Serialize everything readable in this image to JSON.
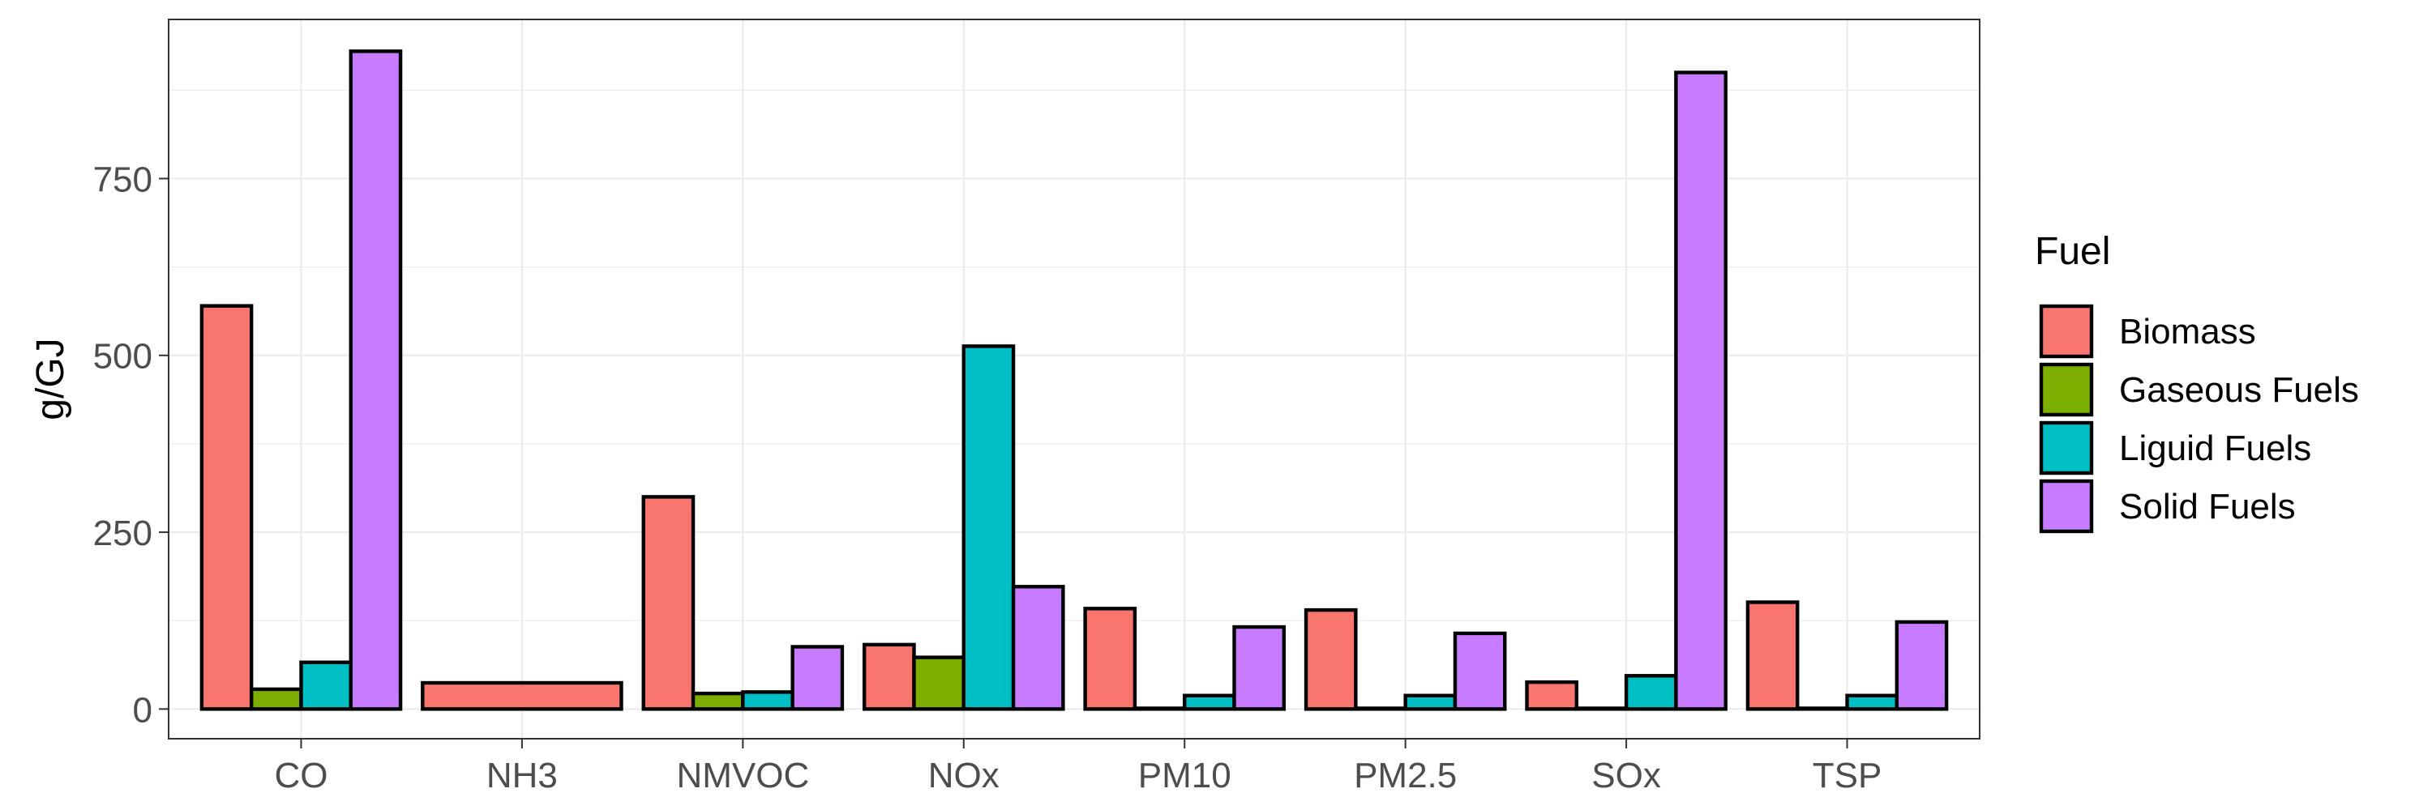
{
  "chart_data": {
    "type": "bar",
    "ylabel": "g/GJ",
    "xlabel": "",
    "categories": [
      "CO",
      "NH3",
      "NMVOC",
      "NOx",
      "PM10",
      "PM2.5",
      "SOx",
      "TSP"
    ],
    "ylim": [
      -42,
      975
    ],
    "yticks": [
      0,
      250,
      500,
      750
    ],
    "grid": true,
    "legend": {
      "title": "Fuel",
      "position": "right"
    },
    "series": [
      {
        "name": "Biomass",
        "color": "#F8766D",
        "values": [
          570,
          37,
          300,
          91,
          142,
          140,
          38,
          151
        ]
      },
      {
        "name": "Gaseous Fuels",
        "color": "#7CAE00",
        "values": [
          28,
          null,
          22,
          73,
          1,
          1,
          1,
          1
        ]
      },
      {
        "name": "Liguid Fuels",
        "color": "#00BFC4",
        "values": [
          66,
          null,
          24,
          513,
          19,
          19,
          47,
          19
        ]
      },
      {
        "name": "Solid Fuels",
        "color": "#C77CFF",
        "values": [
          930,
          null,
          88,
          173,
          116,
          107,
          900,
          123
        ]
      }
    ]
  }
}
